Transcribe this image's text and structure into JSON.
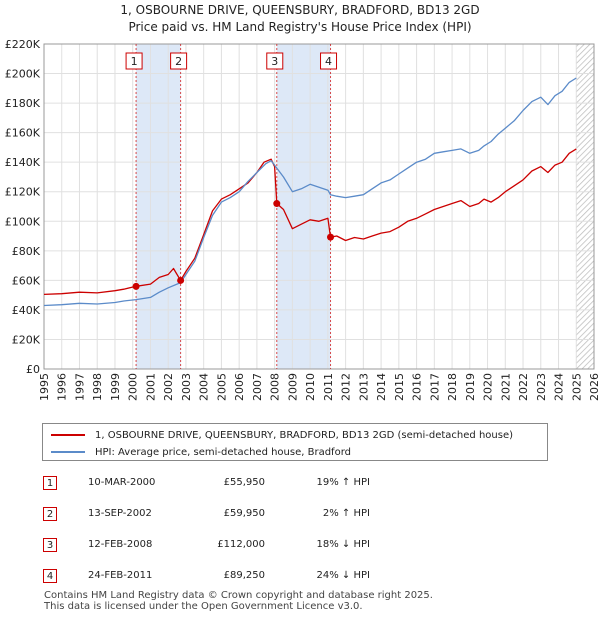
{
  "chart_data": {
    "type": "line",
    "title": "1, OSBOURNE DRIVE, QUEENSBURY, BRADFORD, BD13 2GD",
    "subtitle": "Price paid vs. HM Land Registry's House Price Index (HPI)",
    "ylim": [
      0,
      220000
    ],
    "xlim": [
      1995,
      2026
    ],
    "y_ticks": [
      "£0",
      "£20K",
      "£40K",
      "£60K",
      "£80K",
      "£100K",
      "£120K",
      "£140K",
      "£160K",
      "£180K",
      "£200K",
      "£220K"
    ],
    "x_ticks": [
      "1995",
      "1996",
      "1997",
      "1998",
      "1999",
      "2000",
      "2001",
      "2002",
      "2003",
      "2004",
      "2005",
      "2006",
      "2007",
      "2008",
      "2009",
      "2010",
      "2011",
      "2012",
      "2013",
      "2014",
      "2015",
      "2016",
      "2017",
      "2018",
      "2019",
      "2020",
      "2021",
      "2022",
      "2023",
      "2024",
      "2025",
      "2026"
    ],
    "grid": true,
    "colors": {
      "property": "#cc0000",
      "hpi": "#5b8bc9",
      "shade": "#dde8f7",
      "hatch": "#bbbbbb",
      "grid": "#e0e0e0"
    },
    "shaded_ranges": [
      [
        2000.19,
        2002.7
      ],
      [
        2008.12,
        2011.15
      ]
    ],
    "hatched_range": [
      2025.0,
      2026.0
    ],
    "series": [
      {
        "name": "1, OSBOURNE DRIVE, QUEENSBURY, BRADFORD, BD13 2GD (semi-detached house)",
        "key": "property",
        "x": [
          1995.0,
          1996.0,
          1997.0,
          1998.0,
          1999.0,
          1999.5,
          2000.19,
          2001.0,
          2001.5,
          2002.0,
          2002.3,
          2002.7,
          2003.0,
          2003.5,
          2004.0,
          2004.5,
          2005.0,
          2005.5,
          2006.0,
          2006.5,
          2007.0,
          2007.4,
          2007.8,
          2008.0,
          2008.12,
          2008.5,
          2009.0,
          2009.5,
          2010.0,
          2010.5,
          2011.0,
          2011.15,
          2011.5,
          2012.0,
          2012.5,
          2013.0,
          2013.5,
          2014.0,
          2014.5,
          2015.0,
          2015.5,
          2016.0,
          2016.5,
          2017.0,
          2017.5,
          2018.0,
          2018.5,
          2019.0,
          2019.5,
          2019.8,
          2020.2,
          2020.6,
          2021.0,
          2021.5,
          2022.0,
          2022.5,
          2023.0,
          2023.4,
          2023.8,
          2024.2,
          2024.6,
          2025.0
        ],
        "values": [
          50500,
          51000,
          52000,
          51500,
          53000,
          54000,
          55950,
          57500,
          62000,
          64000,
          68000,
          59950,
          66000,
          75000,
          91000,
          107000,
          115000,
          118000,
          122000,
          126000,
          133000,
          140000,
          142000,
          137000,
          112000,
          108000,
          95000,
          98000,
          101000,
          100000,
          102000,
          89250,
          90000,
          87000,
          89000,
          88000,
          90000,
          92000,
          93000,
          96000,
          100000,
          102000,
          105000,
          108000,
          110000,
          112000,
          114000,
          110000,
          112000,
          115000,
          113000,
          116000,
          120000,
          124000,
          128000,
          134000,
          137000,
          133000,
          138000,
          140000,
          146000,
          149000
        ]
      },
      {
        "name": "HPI: Average price, semi-detached house, Bradford",
        "key": "hpi",
        "x": [
          1995.0,
          1996.0,
          1997.0,
          1998.0,
          1999.0,
          1999.5,
          2000.19,
          2001.0,
          2001.5,
          2002.0,
          2002.7,
          2003.0,
          2003.5,
          2004.0,
          2004.5,
          2005.0,
          2005.5,
          2006.0,
          2006.5,
          2007.0,
          2007.5,
          2007.8,
          2008.0,
          2008.12,
          2008.5,
          2009.0,
          2009.5,
          2010.0,
          2010.5,
          2011.0,
          2011.15,
          2011.5,
          2012.0,
          2012.5,
          2013.0,
          2013.5,
          2014.0,
          2014.5,
          2015.0,
          2015.5,
          2016.0,
          2016.5,
          2017.0,
          2017.5,
          2018.0,
          2018.5,
          2019.0,
          2019.5,
          2019.8,
          2020.2,
          2020.6,
          2021.0,
          2021.5,
          2022.0,
          2022.5,
          2023.0,
          2023.4,
          2023.8,
          2024.2,
          2024.6,
          2025.0
        ],
        "values": [
          43000,
          43500,
          44500,
          44000,
          45000,
          46000,
          47000,
          48500,
          52000,
          55000,
          58500,
          64000,
          73000,
          89000,
          104000,
          113000,
          116000,
          120000,
          127000,
          133000,
          139000,
          141000,
          138000,
          136000,
          130000,
          120000,
          122000,
          125000,
          123000,
          121000,
          118000,
          117000,
          116000,
          117000,
          118000,
          122000,
          126000,
          128000,
          132000,
          136000,
          140000,
          142000,
          146000,
          147000,
          148000,
          149000,
          146000,
          148000,
          151000,
          154000,
          159000,
          163000,
          168000,
          175000,
          181000,
          184000,
          179000,
          185000,
          188000,
          194000,
          197000
        ]
      }
    ],
    "annotations": [
      {
        "label": "1",
        "x": 2000.19,
        "value": 55950
      },
      {
        "label": "2",
        "x": 2002.7,
        "value": 59950
      },
      {
        "label": "3",
        "x": 2008.12,
        "value": 112000
      },
      {
        "label": "4",
        "x": 2011.15,
        "value": 89250
      }
    ]
  },
  "legend": {
    "property_label": "1, OSBOURNE DRIVE, QUEENSBURY, BRADFORD, BD13 2GD (semi-detached house)",
    "hpi_label": "HPI: Average price, semi-detached house, Bradford"
  },
  "transactions": [
    {
      "num": "1",
      "date": "10-MAR-2000",
      "price": "£55,950",
      "hpi": "19% ↑ HPI"
    },
    {
      "num": "2",
      "date": "13-SEP-2002",
      "price": "£59,950",
      "hpi": "2% ↑ HPI"
    },
    {
      "num": "3",
      "date": "12-FEB-2008",
      "price": "£112,000",
      "hpi": "18% ↓ HPI"
    },
    {
      "num": "4",
      "date": "24-FEB-2011",
      "price": "£89,250",
      "hpi": "24% ↓ HPI"
    }
  ],
  "footer": {
    "line1": "Contains HM Land Registry data © Crown copyright and database right 2025.",
    "line2": "This data is licensed under the Open Government Licence v3.0."
  }
}
